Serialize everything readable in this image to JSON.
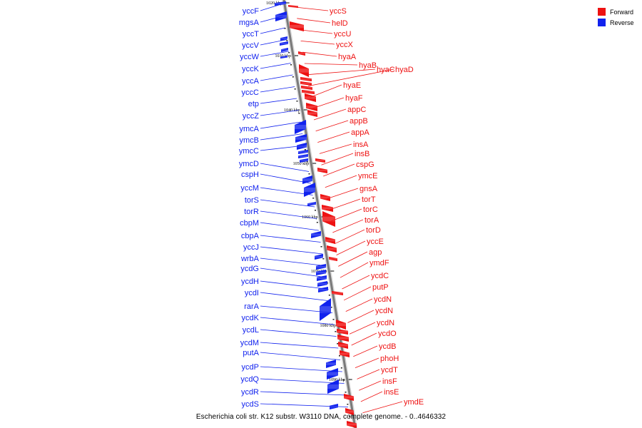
{
  "colors": {
    "forward": "#ee1111",
    "reverse": "#1122ee",
    "axis": "#888888"
  },
  "legend": [
    {
      "label": "Forward",
      "color": "#ee1111"
    },
    {
      "label": "Reverse",
      "color": "#1122ee"
    }
  ],
  "caption": "Escherichia coli str. K12 substr. W3110 DNA, complete genome. - 0..4646332",
  "kbp_marks": [
    "1020 kbp",
    "1030 kbp",
    "1040 kbp",
    "1050 kbp",
    "1060 kbp",
    "1070 kbp",
    "1080 kbp",
    "1090 kbp"
  ],
  "reverse_genes": [
    "yccF",
    "mgsA",
    "yccT",
    "yccV",
    "yccW",
    "yccK",
    "yccA",
    "yccC",
    "etp",
    "yccZ",
    "ymcA",
    "ymcB",
    "ymcC",
    "ymcD",
    "cspH",
    "yccM",
    "torS",
    "torR",
    "cbpM",
    "cbpA",
    "yccJ",
    "wrbA",
    "ycdG",
    "ycdH",
    "ycdI",
    "rarA",
    "ycdK",
    "ycdL",
    "ycdM",
    "putA",
    "ycdP",
    "ycdQ",
    "ycdR",
    "ycdS"
  ],
  "forward_genes": [
    "yccS",
    "helD",
    "yccU",
    "yccX",
    "hyaA",
    "hyaB",
    "hyaC",
    "hyaD",
    "hyaE",
    "hyaF",
    "appC",
    "appB",
    "appA",
    "insA",
    "insB",
    "cspG",
    "ymcE",
    "gnsA",
    "torT",
    "torC",
    "torA",
    "torD",
    "yccE",
    "agp",
    "ymdF",
    "ycdC",
    "putP",
    "ycdN",
    "ycdN",
    "ycdN",
    "ycdO",
    "ycdB",
    "phoH",
    "ycdT",
    "insF",
    "insE",
    "ymdE"
  ]
}
